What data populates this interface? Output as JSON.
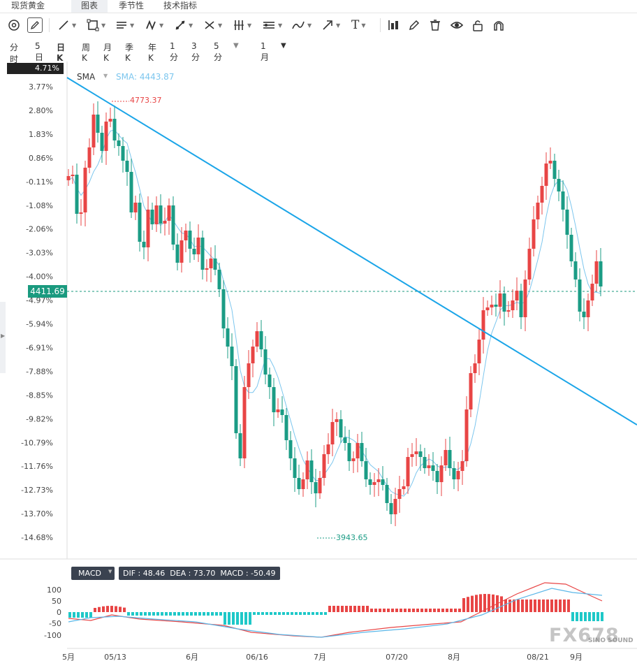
{
  "tabs": [
    {
      "label": "现货黄金"
    },
    {
      "label": "图表"
    },
    {
      "label": "季节性"
    },
    {
      "label": "技术指标"
    }
  ],
  "toolbar": {
    "tools": [
      "circle-draw-icon",
      "pencil-icon",
      "line-tool-icon",
      "rectangle-tool-icon",
      "parallel-lines-icon",
      "pattern-icon",
      "measure-icon",
      "fibonacci-icon",
      "gann-icon",
      "channel-icon",
      "brush-icon",
      "arrow-icon",
      "text-tool-icon",
      "candlestick-type-icon",
      "edit-icon",
      "trash-icon",
      "eye-icon",
      "lock-icon",
      "magnet-icon"
    ],
    "text_tool_glyph": "T"
  },
  "periods": [
    "分时",
    "5日",
    "日K",
    "周K",
    "月K",
    "季K",
    "年K",
    "1分",
    "3分",
    "5分"
  ],
  "active_period": "日K",
  "range_select": "1月",
  "indicator": {
    "name": "SMA",
    "value_label": "SMA: 4443.87"
  },
  "price_axis": {
    "top_label": "4.71%",
    "labels": [
      "3.77%",
      "2.80%",
      "1.83%",
      "0.86%",
      "-0.11%",
      "-1.08%",
      "-2.06%",
      "-3.03%",
      "-4.00%",
      "-4.97%",
      "-5.94%",
      "-6.91%",
      "-7.88%",
      "-8.85%",
      "-9.82%",
      "-10.79%",
      "-11.76%",
      "-12.73%",
      "-13.70%",
      "-14.68%"
    ],
    "current_price": "4411.69",
    "current_color": "#1a9a7f"
  },
  "markers": {
    "high": "4773.37",
    "low": "3943.65"
  },
  "time_axis": [
    "5月",
    "05/13",
    "6月",
    "06/16",
    "7月",
    "07/20",
    "8月",
    "08/21",
    "9月"
  ],
  "macd": {
    "name": "MACD",
    "dif": "48.46",
    "dea": "73.70",
    "macd": "-50.49",
    "dif_label": "DIF : 48.46",
    "dea_label": "DEA : 73.70",
    "macd_label": "MACD : -50.49",
    "axis": [
      "100",
      "50",
      "0",
      "-50",
      "-100"
    ]
  },
  "colors": {
    "up": "#e84545",
    "down": "#1b9c85",
    "trend": "#1ba5e8",
    "sma": "#7cc6ee",
    "dif": "#e84545",
    "dea": "#5bb7e8",
    "hist_pos": "#e84545",
    "hist_neg": "#1ec8c8"
  },
  "watermark": "FX678",
  "watermark_sub": "SINO SOUND"
}
